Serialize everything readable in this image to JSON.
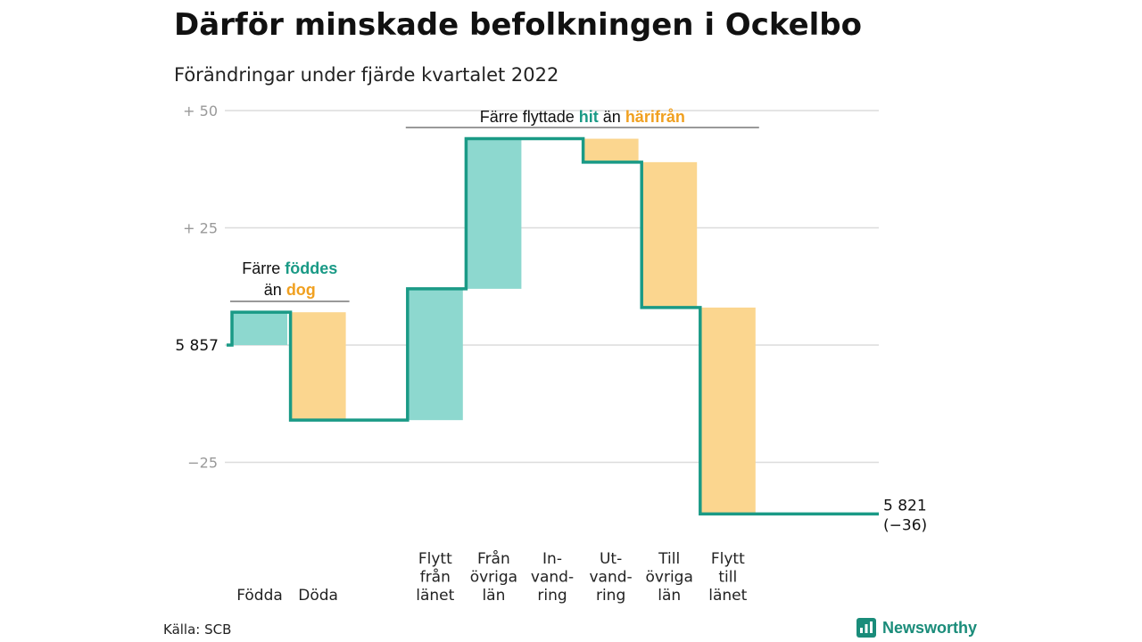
{
  "title": "Därför minskade befolkningen i Ockelbo",
  "subtitle": "Förändringar under fjärde kvartalet 2022",
  "source": "Källa: SCB",
  "brand": "Newsworthy",
  "colors": {
    "increase": "#8dd8cf",
    "decrease": "#fbd68f",
    "line": "#1a9a86",
    "accent_teal": "#1a9a86",
    "accent_orange": "#f0a020",
    "grid": "#dcdcdc",
    "tick": "#999999",
    "brand": "#1a8c7a"
  },
  "chart_data": {
    "type": "bar",
    "subtype": "waterfall",
    "start_value": 5857,
    "start_label": "5 857",
    "end_value": 5821,
    "end_label": "5 821",
    "end_change_label": "(−36)",
    "y_ticks": [
      {
        "value": 50,
        "label": "+ 50"
      },
      {
        "value": 25,
        "label": "+ 25"
      },
      {
        "value": 0,
        "label": ""
      },
      {
        "value": -25,
        "label": "−25"
      }
    ],
    "ylim": [
      -36,
      50
    ],
    "grid": true,
    "categories": [
      {
        "lines": [
          "Födda"
        ],
        "value": 7
      },
      {
        "lines": [
          "Döda"
        ],
        "value": -23
      },
      {
        "lines": [],
        "value": 0
      },
      {
        "lines": [
          "Flytt",
          "från",
          "länet"
        ],
        "value": 28
      },
      {
        "lines": [
          "Från",
          "övriga",
          "län"
        ],
        "value": 32
      },
      {
        "lines": [
          "In-",
          "vand-",
          "ring"
        ],
        "value": 0
      },
      {
        "lines": [
          "Ut-",
          "vand-",
          "ring"
        ],
        "value": -5
      },
      {
        "lines": [
          "Till",
          "övriga",
          "län"
        ],
        "value": -31
      },
      {
        "lines": [
          "Flytt",
          "till",
          "länet"
        ],
        "value": -44
      }
    ],
    "annotations": [
      {
        "from": 0,
        "to": 1,
        "parts": [
          {
            "text": "Färre ",
            "style": "plain"
          },
          {
            "text": "föddes",
            "style": "teal"
          },
          {
            "text": "",
            "style": "break"
          },
          {
            "text": "än ",
            "style": "plain"
          },
          {
            "text": "dog",
            "style": "orange"
          }
        ]
      },
      {
        "from": 3,
        "to": 8,
        "parts": [
          {
            "text": "Färre flyttade ",
            "style": "plain"
          },
          {
            "text": "hit",
            "style": "teal"
          },
          {
            "text": " än ",
            "style": "plain"
          },
          {
            "text": "härifrån",
            "style": "orange"
          }
        ]
      }
    ]
  }
}
